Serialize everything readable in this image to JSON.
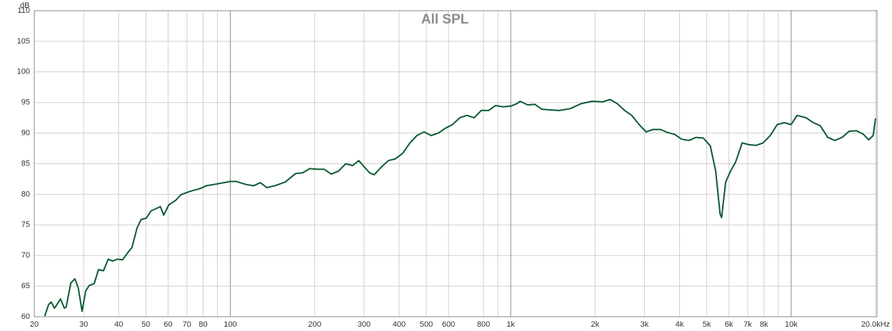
{
  "chart_data": {
    "type": "line",
    "title": "All SPL",
    "y_label": "dB",
    "xscale": "log",
    "grid": true,
    "xlim": [
      20,
      20000
    ],
    "ylim": [
      60,
      110
    ],
    "yticks": [
      60,
      65,
      70,
      75,
      80,
      85,
      90,
      95,
      100,
      105,
      110
    ],
    "xticks": [
      20,
      30,
      40,
      50,
      60,
      70,
      80,
      100,
      200,
      300,
      400,
      500,
      600,
      800,
      {
        "value": 1000,
        "label": "1k"
      },
      {
        "value": 2000,
        "label": "2k"
      },
      {
        "value": 3000,
        "label": "3k"
      },
      {
        "value": 4000,
        "label": "4k"
      },
      {
        "value": 5000,
        "label": "5k"
      },
      {
        "value": 6000,
        "label": "6k"
      },
      {
        "value": 7000,
        "label": "7k"
      },
      {
        "value": 8000,
        "label": "8k"
      },
      {
        "value": 10000,
        "label": "10k"
      },
      {
        "value": 20000,
        "label": "20.0kHz"
      }
    ],
    "xminor": [
      90,
      900,
      9000
    ],
    "series": [
      {
        "color": "#0b5a32",
        "x": [
          21.8,
          22.5,
          23.0,
          23.6,
          24.1,
          24.8,
          25.6,
          26.0,
          27.0,
          27.9,
          28.7,
          29.6,
          30.5,
          31.4,
          32.7,
          33.9,
          35.3,
          36.7,
          38.0,
          39.6,
          41.3,
          43.3,
          44.6,
          46.5,
          48.1,
          50.1,
          52.2,
          54.0,
          56.3,
          57.9,
          60.4,
          63.8,
          66.5,
          70.0,
          73.2,
          77.6,
          82.2,
          87.2,
          92.1,
          100,
          105,
          114,
          121,
          128,
          135,
          144,
          157,
          171,
          181,
          192,
          204,
          216,
          229,
          243,
          258,
          273,
          287,
          299,
          314,
          326,
          345,
          366,
          388,
          412,
          437,
          463,
          491,
          520,
          552,
          585,
          620,
          658,
          698,
          740,
          785,
          833,
          883,
          937,
          1000,
          1050,
          1080,
          1150,
          1220,
          1290,
          1370,
          1490,
          1630,
          1780,
          1950,
          2130,
          2260,
          2400,
          2550,
          2700,
          2870,
          3040,
          3220,
          3420,
          3620,
          3840,
          4070,
          4320,
          4580,
          4860,
          5150,
          5380,
          5580,
          5650,
          5840,
          6080,
          6330,
          6690,
          7080,
          7500,
          7940,
          8420,
          8920,
          9450,
          10000,
          10500,
          11300,
          12000,
          12700,
          13500,
          14300,
          15200,
          16100,
          17100,
          18100,
          18900,
          19600,
          20000
        ],
        "values": [
          60.1,
          62.0,
          62.4,
          61.4,
          62.0,
          62.9,
          61.4,
          61.6,
          65.5,
          66.2,
          64.7,
          60.9,
          64.2,
          65.1,
          65.4,
          67.7,
          67.5,
          69.4,
          69.1,
          69.4,
          69.3,
          70.6,
          71.3,
          74.5,
          75.9,
          76.1,
          77.3,
          77.6,
          78.0,
          76.6,
          78.3,
          79.0,
          79.9,
          80.3,
          80.6,
          80.9,
          81.4,
          81.6,
          81.8,
          82.1,
          82.1,
          81.6,
          81.4,
          81.9,
          81.1,
          81.4,
          82.0,
          83.4,
          83.5,
          84.2,
          84.1,
          84.1,
          83.3,
          83.8,
          85.0,
          84.7,
          85.5,
          84.6,
          83.5,
          83.2,
          84.4,
          85.5,
          85.8,
          86.7,
          88.4,
          89.6,
          90.2,
          89.6,
          90.0,
          90.8,
          91.4,
          92.5,
          92.9,
          92.5,
          93.7,
          93.7,
          94.5,
          94.3,
          94.4,
          94.8,
          95.2,
          94.6,
          94.7,
          93.9,
          93.8,
          93.7,
          94.0,
          94.8,
          95.2,
          95.1,
          95.5,
          94.8,
          93.7,
          92.9,
          91.4,
          90.2,
          90.6,
          90.6,
          90.1,
          89.8,
          89.0,
          88.8,
          89.3,
          89.2,
          87.9,
          83.8,
          76.8,
          76.2,
          82.0,
          83.8,
          85.2,
          88.4,
          88.1,
          88.0,
          88.4,
          89.6,
          91.4,
          91.7,
          91.4,
          92.9,
          92.5,
          91.7,
          91.2,
          89.3,
          88.8,
          89.3,
          90.3,
          90.4,
          89.8,
          88.9,
          89.6,
          92.4
        ]
      }
    ]
  }
}
